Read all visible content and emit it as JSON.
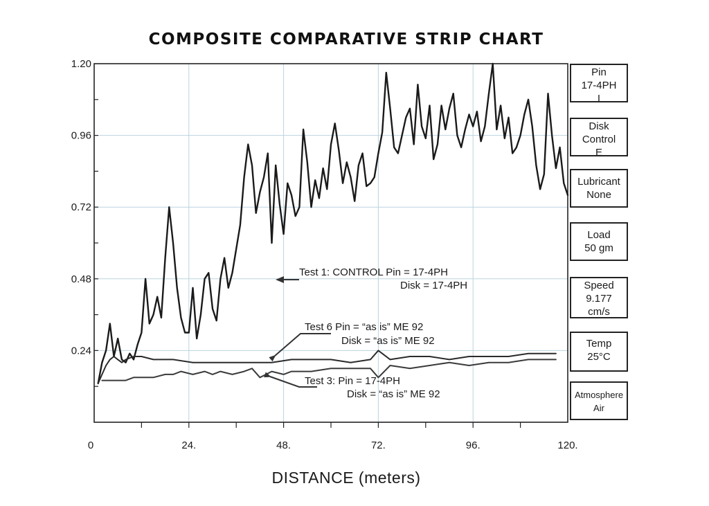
{
  "chart_data": {
    "type": "line",
    "title": "COMPOSITE COMPARATIVE STRIP CHART",
    "xlabel": "DISTANCE (meters)",
    "ylabel": "",
    "xlim": [
      0,
      120
    ],
    "ylim": [
      0,
      1.2
    ],
    "x_ticks": [
      0,
      24,
      48,
      72,
      96,
      120
    ],
    "x_tick_labels": [
      "0",
      "24.",
      "48.",
      "72.",
      "96.",
      "120."
    ],
    "y_ticks": [
      0.24,
      0.48,
      0.72,
      0.96,
      1.2
    ],
    "y_tick_labels": [
      "0.24",
      "0.48",
      "0.72",
      "0.96",
      "1.20"
    ],
    "grid": true,
    "series": [
      {
        "name": "Test 1: CONTROL Pin = 17-4PH Disk = 17-4PH",
        "color": "#1a1a1a",
        "x": [
          1,
          2,
          3,
          4,
          5,
          6,
          7,
          8,
          9,
          10,
          11,
          12,
          13,
          14,
          15,
          16,
          17,
          18,
          19,
          20,
          21,
          22,
          23,
          24,
          25,
          26,
          27,
          28,
          29,
          30,
          31,
          32,
          33,
          34,
          35,
          36,
          37,
          38,
          39,
          40,
          41,
          42,
          43,
          44,
          45,
          46,
          47,
          48,
          49,
          50,
          51,
          52,
          53,
          54,
          55,
          56,
          57,
          58,
          59,
          60,
          61,
          62,
          63,
          64,
          65,
          66,
          67,
          68,
          69,
          70,
          71,
          72,
          73,
          74,
          75,
          76,
          77,
          78,
          79,
          80,
          81,
          82,
          83,
          84,
          85,
          86,
          87,
          88,
          89,
          90,
          91,
          92,
          93,
          94,
          95,
          96,
          97,
          98,
          99,
          100,
          101,
          102,
          103,
          104,
          105,
          106,
          107,
          108,
          109,
          110,
          111,
          112,
          113,
          114,
          115,
          116,
          117,
          118,
          119,
          120
        ],
        "y": [
          0.13,
          0.2,
          0.24,
          0.33,
          0.22,
          0.28,
          0.21,
          0.2,
          0.23,
          0.21,
          0.26,
          0.3,
          0.48,
          0.33,
          0.36,
          0.42,
          0.35,
          0.55,
          0.72,
          0.6,
          0.45,
          0.35,
          0.3,
          0.3,
          0.45,
          0.28,
          0.36,
          0.48,
          0.5,
          0.38,
          0.34,
          0.48,
          0.55,
          0.45,
          0.5,
          0.58,
          0.66,
          0.82,
          0.93,
          0.86,
          0.7,
          0.77,
          0.82,
          0.9,
          0.6,
          0.86,
          0.73,
          0.63,
          0.8,
          0.76,
          0.69,
          0.72,
          0.98,
          0.87,
          0.72,
          0.81,
          0.75,
          0.85,
          0.78,
          0.93,
          1.0,
          0.91,
          0.8,
          0.87,
          0.82,
          0.74,
          0.86,
          0.9,
          0.79,
          0.8,
          0.82,
          0.9,
          0.97,
          1.17,
          1.05,
          0.92,
          0.9,
          0.96,
          1.02,
          1.05,
          0.93,
          1.13,
          0.99,
          0.95,
          1.06,
          0.88,
          0.93,
          1.06,
          0.98,
          1.05,
          1.1,
          0.96,
          0.92,
          0.98,
          1.03,
          0.99,
          1.04,
          0.94,
          0.99,
          1.1,
          1.2,
          0.98,
          1.06,
          0.95,
          1.02,
          0.9,
          0.92,
          0.96,
          1.03,
          1.08,
          0.99,
          0.86,
          0.78,
          0.83,
          1.1,
          0.96,
          0.85,
          0.92,
          0.8,
          0.76
        ]
      },
      {
        "name": "Test 6 Pin = “as is” ME 92 Disk = “as is” ME 92",
        "color": "#2a2a2a",
        "x": [
          1,
          2,
          3,
          4,
          5,
          6,
          7,
          8,
          10,
          12,
          15,
          20,
          25,
          30,
          35,
          40,
          45,
          50,
          55,
          60,
          65,
          70,
          72,
          75,
          80,
          85,
          90,
          95,
          100,
          105,
          110,
          115,
          117
        ],
        "y": [
          0.13,
          0.16,
          0.19,
          0.21,
          0.22,
          0.21,
          0.2,
          0.21,
          0.22,
          0.22,
          0.21,
          0.21,
          0.2,
          0.2,
          0.2,
          0.2,
          0.2,
          0.21,
          0.21,
          0.21,
          0.2,
          0.21,
          0.24,
          0.21,
          0.22,
          0.22,
          0.21,
          0.22,
          0.22,
          0.22,
          0.23,
          0.23,
          0.23
        ]
      },
      {
        "name": "Test 3: Pin = 17-4PH Disk = “as is” ME 92",
        "color": "#3a3a3a",
        "x": [
          2,
          4,
          6,
          8,
          10,
          12,
          15,
          18,
          20,
          22,
          25,
          28,
          30,
          32,
          35,
          38,
          40,
          42,
          45,
          48,
          50,
          55,
          60,
          65,
          70,
          72,
          75,
          80,
          85,
          90,
          95,
          100,
          105,
          110,
          115,
          117
        ],
        "y": [
          0.14,
          0.14,
          0.14,
          0.14,
          0.15,
          0.15,
          0.15,
          0.16,
          0.16,
          0.17,
          0.16,
          0.17,
          0.16,
          0.17,
          0.16,
          0.17,
          0.18,
          0.15,
          0.17,
          0.16,
          0.17,
          0.17,
          0.18,
          0.18,
          0.18,
          0.15,
          0.19,
          0.18,
          0.19,
          0.2,
          0.19,
          0.2,
          0.2,
          0.21,
          0.21,
          0.21
        ]
      }
    ],
    "annotations": [
      {
        "line1": "Test 1: CONTROL Pin = 17-4PH",
        "line2": "Disk = 17-4PH"
      },
      {
        "line1": "Test 6 Pin = “as is” ME 92",
        "line2": "Disk = “as is” ME 92"
      },
      {
        "line1": "Test 3: Pin = 17-4PH",
        "line2": "Disk = “as is” ME 92"
      }
    ],
    "info_boxes": [
      {
        "lines": [
          "Pin",
          "17-4PH",
          "I"
        ]
      },
      {
        "lines": [
          "Disk",
          "Control",
          "E"
        ]
      },
      {
        "lines": [
          "Lubricant",
          "None"
        ]
      },
      {
        "lines": [
          "Load",
          "50 gm"
        ]
      },
      {
        "lines": [
          "Speed",
          "9.177",
          "cm/s"
        ]
      },
      {
        "lines": [
          "Temp",
          "25°C"
        ]
      },
      {
        "lines": [
          "Atmosphere",
          "Air"
        ]
      }
    ]
  }
}
